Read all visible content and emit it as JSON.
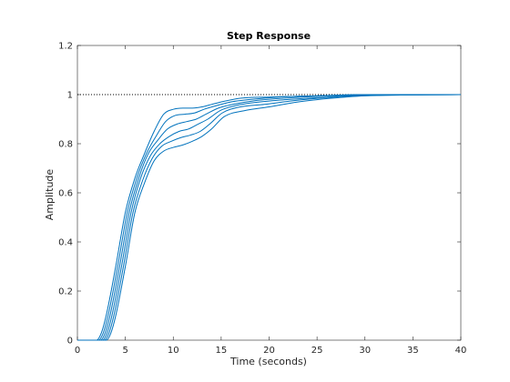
{
  "chart_data": {
    "type": "line",
    "title": "Step Response",
    "xlabel": "Time (seconds)",
    "ylabel": "Amplitude",
    "xlim": [
      0,
      40
    ],
    "ylim": [
      0,
      1.2
    ],
    "xticks": [
      0,
      5,
      10,
      15,
      20,
      25,
      30,
      35,
      40
    ],
    "yticks": [
      0,
      0.2,
      0.4,
      0.6,
      0.8,
      1,
      1.2
    ],
    "xtick_labels": [
      "0",
      "5",
      "10",
      "15",
      "20",
      "25",
      "30",
      "35",
      "40"
    ],
    "ytick_labels": [
      "0",
      "0.2",
      "0.4",
      "0.6",
      "0.8",
      "1",
      "1.2"
    ],
    "grid": false,
    "legend": "none",
    "line_color": "#0072BD",
    "reference_line": {
      "y": 1,
      "style": "dotted",
      "color": "#000000"
    },
    "series": [
      {
        "values": [
          [
            0,
            0
          ],
          [
            2.0,
            0
          ],
          [
            2.5,
            0.03
          ],
          [
            3,
            0.1
          ],
          [
            4,
            0.3
          ],
          [
            5,
            0.52
          ],
          [
            6,
            0.66
          ],
          [
            7,
            0.76
          ],
          [
            8,
            0.85
          ],
          [
            9,
            0.92
          ],
          [
            10,
            0.94
          ],
          [
            11,
            0.945
          ],
          [
            12,
            0.945
          ],
          [
            13,
            0.95
          ],
          [
            14,
            0.96
          ],
          [
            15,
            0.97
          ],
          [
            17,
            0.985
          ],
          [
            20,
            0.99
          ],
          [
            25,
            0.995
          ],
          [
            30,
            1.0
          ],
          [
            40,
            1.0
          ]
        ]
      },
      {
        "values": [
          [
            0,
            0
          ],
          [
            2.2,
            0
          ],
          [
            2.7,
            0.03
          ],
          [
            3.2,
            0.1
          ],
          [
            4.2,
            0.3
          ],
          [
            5.2,
            0.52
          ],
          [
            6.2,
            0.66
          ],
          [
            7.2,
            0.76
          ],
          [
            8.2,
            0.83
          ],
          [
            9.2,
            0.89
          ],
          [
            10.2,
            0.915
          ],
          [
            11.2,
            0.92
          ],
          [
            12.2,
            0.925
          ],
          [
            13.2,
            0.94
          ],
          [
            14.5,
            0.955
          ],
          [
            16,
            0.97
          ],
          [
            18,
            0.98
          ],
          [
            21,
            0.99
          ],
          [
            25,
            0.995
          ],
          [
            30,
            1.0
          ],
          [
            40,
            1.0
          ]
        ]
      },
      {
        "values": [
          [
            0,
            0
          ],
          [
            2.4,
            0
          ],
          [
            2.9,
            0.03
          ],
          [
            3.4,
            0.1
          ],
          [
            4.4,
            0.3
          ],
          [
            5.4,
            0.52
          ],
          [
            6.4,
            0.66
          ],
          [
            7.4,
            0.76
          ],
          [
            8.4,
            0.815
          ],
          [
            9.4,
            0.86
          ],
          [
            10.4,
            0.88
          ],
          [
            11.4,
            0.89
          ],
          [
            12.4,
            0.9
          ],
          [
            13.4,
            0.92
          ],
          [
            14.7,
            0.945
          ],
          [
            16.2,
            0.96
          ],
          [
            18.5,
            0.975
          ],
          [
            21.5,
            0.985
          ],
          [
            25,
            0.993
          ],
          [
            30,
            1.0
          ],
          [
            40,
            1.0
          ]
        ]
      },
      {
        "values": [
          [
            0,
            0
          ],
          [
            2.6,
            0
          ],
          [
            3.1,
            0.03
          ],
          [
            3.6,
            0.1
          ],
          [
            4.6,
            0.3
          ],
          [
            5.6,
            0.52
          ],
          [
            6.6,
            0.66
          ],
          [
            7.6,
            0.75
          ],
          [
            8.6,
            0.8
          ],
          [
            9.6,
            0.83
          ],
          [
            10.6,
            0.85
          ],
          [
            11.6,
            0.86
          ],
          [
            12.6,
            0.88
          ],
          [
            13.6,
            0.9
          ],
          [
            14.9,
            0.935
          ],
          [
            16.5,
            0.955
          ],
          [
            19,
            0.97
          ],
          [
            22,
            0.98
          ],
          [
            26,
            0.99
          ],
          [
            30,
            0.998
          ],
          [
            40,
            1.0
          ]
        ]
      },
      {
        "values": [
          [
            0,
            0
          ],
          [
            2.8,
            0
          ],
          [
            3.3,
            0.03
          ],
          [
            3.8,
            0.1
          ],
          [
            4.8,
            0.3
          ],
          [
            5.8,
            0.52
          ],
          [
            6.8,
            0.65
          ],
          [
            7.8,
            0.74
          ],
          [
            8.8,
            0.79
          ],
          [
            9.8,
            0.81
          ],
          [
            10.8,
            0.825
          ],
          [
            11.8,
            0.835
          ],
          [
            12.8,
            0.85
          ],
          [
            13.8,
            0.88
          ],
          [
            15.1,
            0.925
          ],
          [
            17,
            0.95
          ],
          [
            19.5,
            0.96
          ],
          [
            22.5,
            0.975
          ],
          [
            26,
            0.988
          ],
          [
            30,
            0.996
          ],
          [
            40,
            1.0
          ]
        ]
      },
      {
        "values": [
          [
            0,
            0
          ],
          [
            3.0,
            0
          ],
          [
            3.5,
            0.03
          ],
          [
            4.0,
            0.1
          ],
          [
            5.0,
            0.3
          ],
          [
            6.0,
            0.52
          ],
          [
            7.0,
            0.64
          ],
          [
            8.0,
            0.73
          ],
          [
            9.0,
            0.77
          ],
          [
            10.0,
            0.785
          ],
          [
            11.0,
            0.795
          ],
          [
            12.0,
            0.81
          ],
          [
            13.0,
            0.83
          ],
          [
            14.0,
            0.86
          ],
          [
            15.3,
            0.91
          ],
          [
            17.5,
            0.935
          ],
          [
            20,
            0.95
          ],
          [
            23,
            0.97
          ],
          [
            26.5,
            0.985
          ],
          [
            30,
            0.995
          ],
          [
            40,
            1.0
          ]
        ]
      }
    ]
  }
}
